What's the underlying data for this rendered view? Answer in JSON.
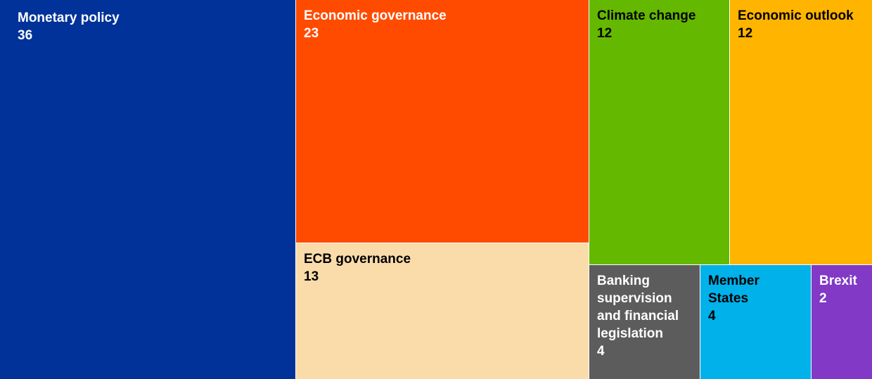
{
  "chart_data": {
    "type": "treemap",
    "items": [
      {
        "label": "Monetary policy",
        "value": 36,
        "color": "#003299",
        "text_color": "#ffffff"
      },
      {
        "label": "Economic governance",
        "value": 23,
        "color": "#FF4B00",
        "text_color": "#ffffff"
      },
      {
        "label": "ECB governance",
        "value": 13,
        "color": "#FADCAA",
        "text_color": "#000000"
      },
      {
        "label": "Climate change",
        "value": 12,
        "color": "#65B800",
        "text_color": "#000000"
      },
      {
        "label": "Economic outlook",
        "value": 12,
        "color": "#FFB400",
        "text_color": "#000000"
      },
      {
        "label": "Banking supervision and financial legislation",
        "value": 4,
        "color": "#5C5C5C",
        "text_color": "#ffffff"
      },
      {
        "label": "Member States",
        "value": 4,
        "color": "#00B1EA",
        "text_color": "#000000"
      },
      {
        "label": "Brexit",
        "value": 2,
        "color": "#8139C6",
        "text_color": "#ffffff"
      }
    ]
  }
}
